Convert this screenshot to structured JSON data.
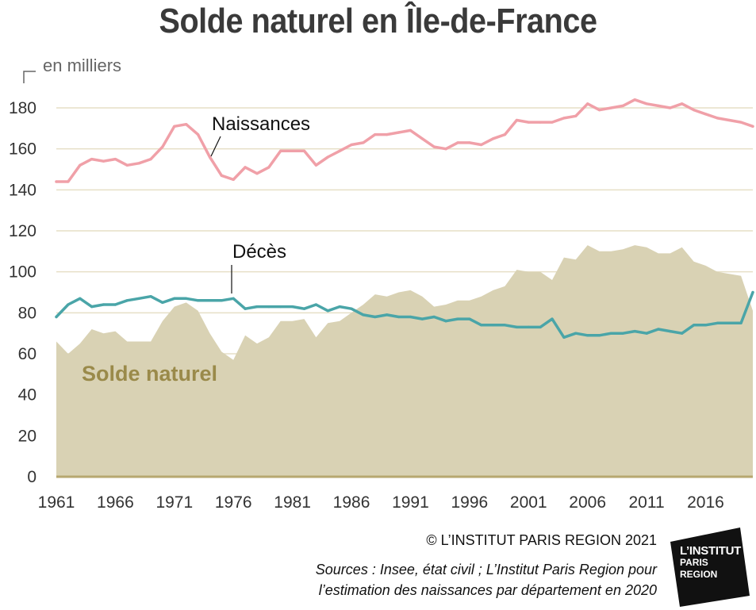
{
  "chart_data": {
    "type": "line",
    "title": "Solde naturel en Île-de-France",
    "unit_label": "en milliers",
    "ylim": [
      0,
      190
    ],
    "yticks": [
      0,
      20,
      40,
      60,
      80,
      100,
      120,
      140,
      160,
      180
    ],
    "xticks": [
      1961,
      1966,
      1971,
      1976,
      1981,
      1986,
      1991,
      1996,
      2001,
      2006,
      2011,
      2016
    ],
    "grid": true,
    "x": [
      1961,
      1962,
      1963,
      1964,
      1965,
      1966,
      1967,
      1968,
      1969,
      1970,
      1971,
      1972,
      1973,
      1974,
      1975,
      1976,
      1977,
      1978,
      1979,
      1980,
      1981,
      1982,
      1983,
      1984,
      1985,
      1986,
      1987,
      1988,
      1989,
      1990,
      1991,
      1992,
      1993,
      1994,
      1995,
      1996,
      1997,
      1998,
      1999,
      2000,
      2001,
      2002,
      2003,
      2004,
      2005,
      2006,
      2007,
      2008,
      2009,
      2010,
      2011,
      2012,
      2013,
      2014,
      2015,
      2016,
      2017,
      2018,
      2019,
      2020
    ],
    "series": [
      {
        "name": "Naissances",
        "kind": "line",
        "color": "#f0a0a8",
        "values": [
          144,
          144,
          152,
          155,
          154,
          155,
          152,
          153,
          155,
          161,
          171,
          172,
          167,
          156,
          147,
          145,
          151,
          148,
          151,
          159,
          159,
          159,
          152,
          156,
          159,
          162,
          163,
          167,
          167,
          168,
          169,
          165,
          161,
          160,
          163,
          163,
          162,
          165,
          167,
          174,
          173,
          173,
          173,
          175,
          176,
          182,
          179,
          180,
          181,
          184,
          182,
          181,
          180,
          182,
          179,
          177,
          175,
          174,
          173,
          171
        ]
      },
      {
        "name": "Décès",
        "kind": "line",
        "color": "#4aa5a8",
        "values": [
          78,
          84,
          87,
          83,
          84,
          84,
          86,
          87,
          88,
          85,
          87,
          87,
          86,
          86,
          86,
          87,
          82,
          83,
          83,
          83,
          83,
          82,
          84,
          81,
          83,
          82,
          79,
          78,
          79,
          78,
          78,
          77,
          78,
          76,
          77,
          77,
          74,
          74,
          74,
          73,
          73,
          73,
          77,
          68,
          70,
          69,
          69,
          70,
          70,
          71,
          70,
          72,
          71,
          70,
          74,
          74,
          75,
          75,
          75,
          90
        ]
      },
      {
        "name": "Solde naturel",
        "kind": "area",
        "color": "#d9d2b4",
        "values": [
          66,
          60,
          65,
          72,
          70,
          71,
          66,
          66,
          66,
          76,
          83,
          85,
          81,
          70,
          61,
          57,
          69,
          65,
          68,
          76,
          76,
          77,
          68,
          75,
          76,
          80,
          84,
          89,
          88,
          90,
          91,
          88,
          83,
          84,
          86,
          86,
          88,
          91,
          93,
          101,
          100,
          100,
          96,
          107,
          106,
          113,
          110,
          110,
          111,
          113,
          112,
          109,
          109,
          112,
          105,
          103,
          100,
          99,
          98,
          81
        ]
      }
    ]
  },
  "footer": {
    "copyright": "© L’INSTITUT PARIS REGION 2021",
    "sources_line1": "Sources : Insee, état civil ; L’Institut Paris Region pour",
    "sources_line2": "l’estimation des naissances par département en 2020"
  },
  "logo": {
    "line1": "L’INSTITUT",
    "line2": "PARIS",
    "line3": "REGION"
  },
  "colors": {
    "naissances": "#f0a0a8",
    "deces": "#4aa5a8",
    "solde_area": "#d9d2b4",
    "solde_label": "#9a8a4a",
    "grid": "#e6dfc6",
    "baseline": "#b7a870"
  }
}
